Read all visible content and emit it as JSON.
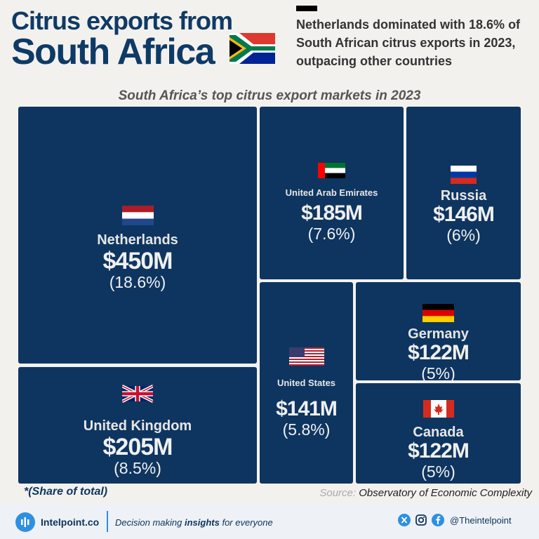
{
  "header": {
    "title_line1": "Citrus exports from",
    "title_line2": "South Africa",
    "headline": "Netherlands dominated with 18.6% of South African citrus exports in 2023, outpacing other countries"
  },
  "chart_data": {
    "type": "treemap",
    "title": "South Africa’s top citrus export markets in 2023",
    "items": [
      {
        "name": "Netherlands",
        "value_label": "$450M",
        "share_label": "(18.6%)",
        "value": 450,
        "share": 18.6
      },
      {
        "name": "United Kingdom",
        "value_label": "$205M",
        "share_label": "(8.5%)",
        "value": 205,
        "share": 8.5
      },
      {
        "name": "United Arab Emirates",
        "value_label": "$185M",
        "share_label": "(7.6%)",
        "value": 185,
        "share": 7.6
      },
      {
        "name": "Russia",
        "value_label": "$146M",
        "share_label": "(6%)",
        "value": 146,
        "share": 6
      },
      {
        "name": "United States",
        "value_label": "$141M",
        "share_label": "(5.8%)",
        "value": 141,
        "share": 5.8
      },
      {
        "name": "Germany",
        "value_label": "$122M",
        "share_label": "(5%)",
        "value": 122,
        "share": 5
      },
      {
        "name": "Canada",
        "value_label": "$122M",
        "share_label": "(5%)",
        "value": 122,
        "share": 5
      }
    ]
  },
  "notes": {
    "share": "*(Share of total)",
    "source_label": "Source:",
    "source_text": "Observatory of Economic Complexity"
  },
  "footer": {
    "brand": "Intelpoint.co",
    "tagline_pre": "Decision making ",
    "tagline_bold": "insights",
    "tagline_post": " for everyone",
    "handle": "@Theintelpoint"
  },
  "colors": {
    "tile": "#0e3560",
    "title": "#0e3a66",
    "accent": "#2f8fe0"
  }
}
